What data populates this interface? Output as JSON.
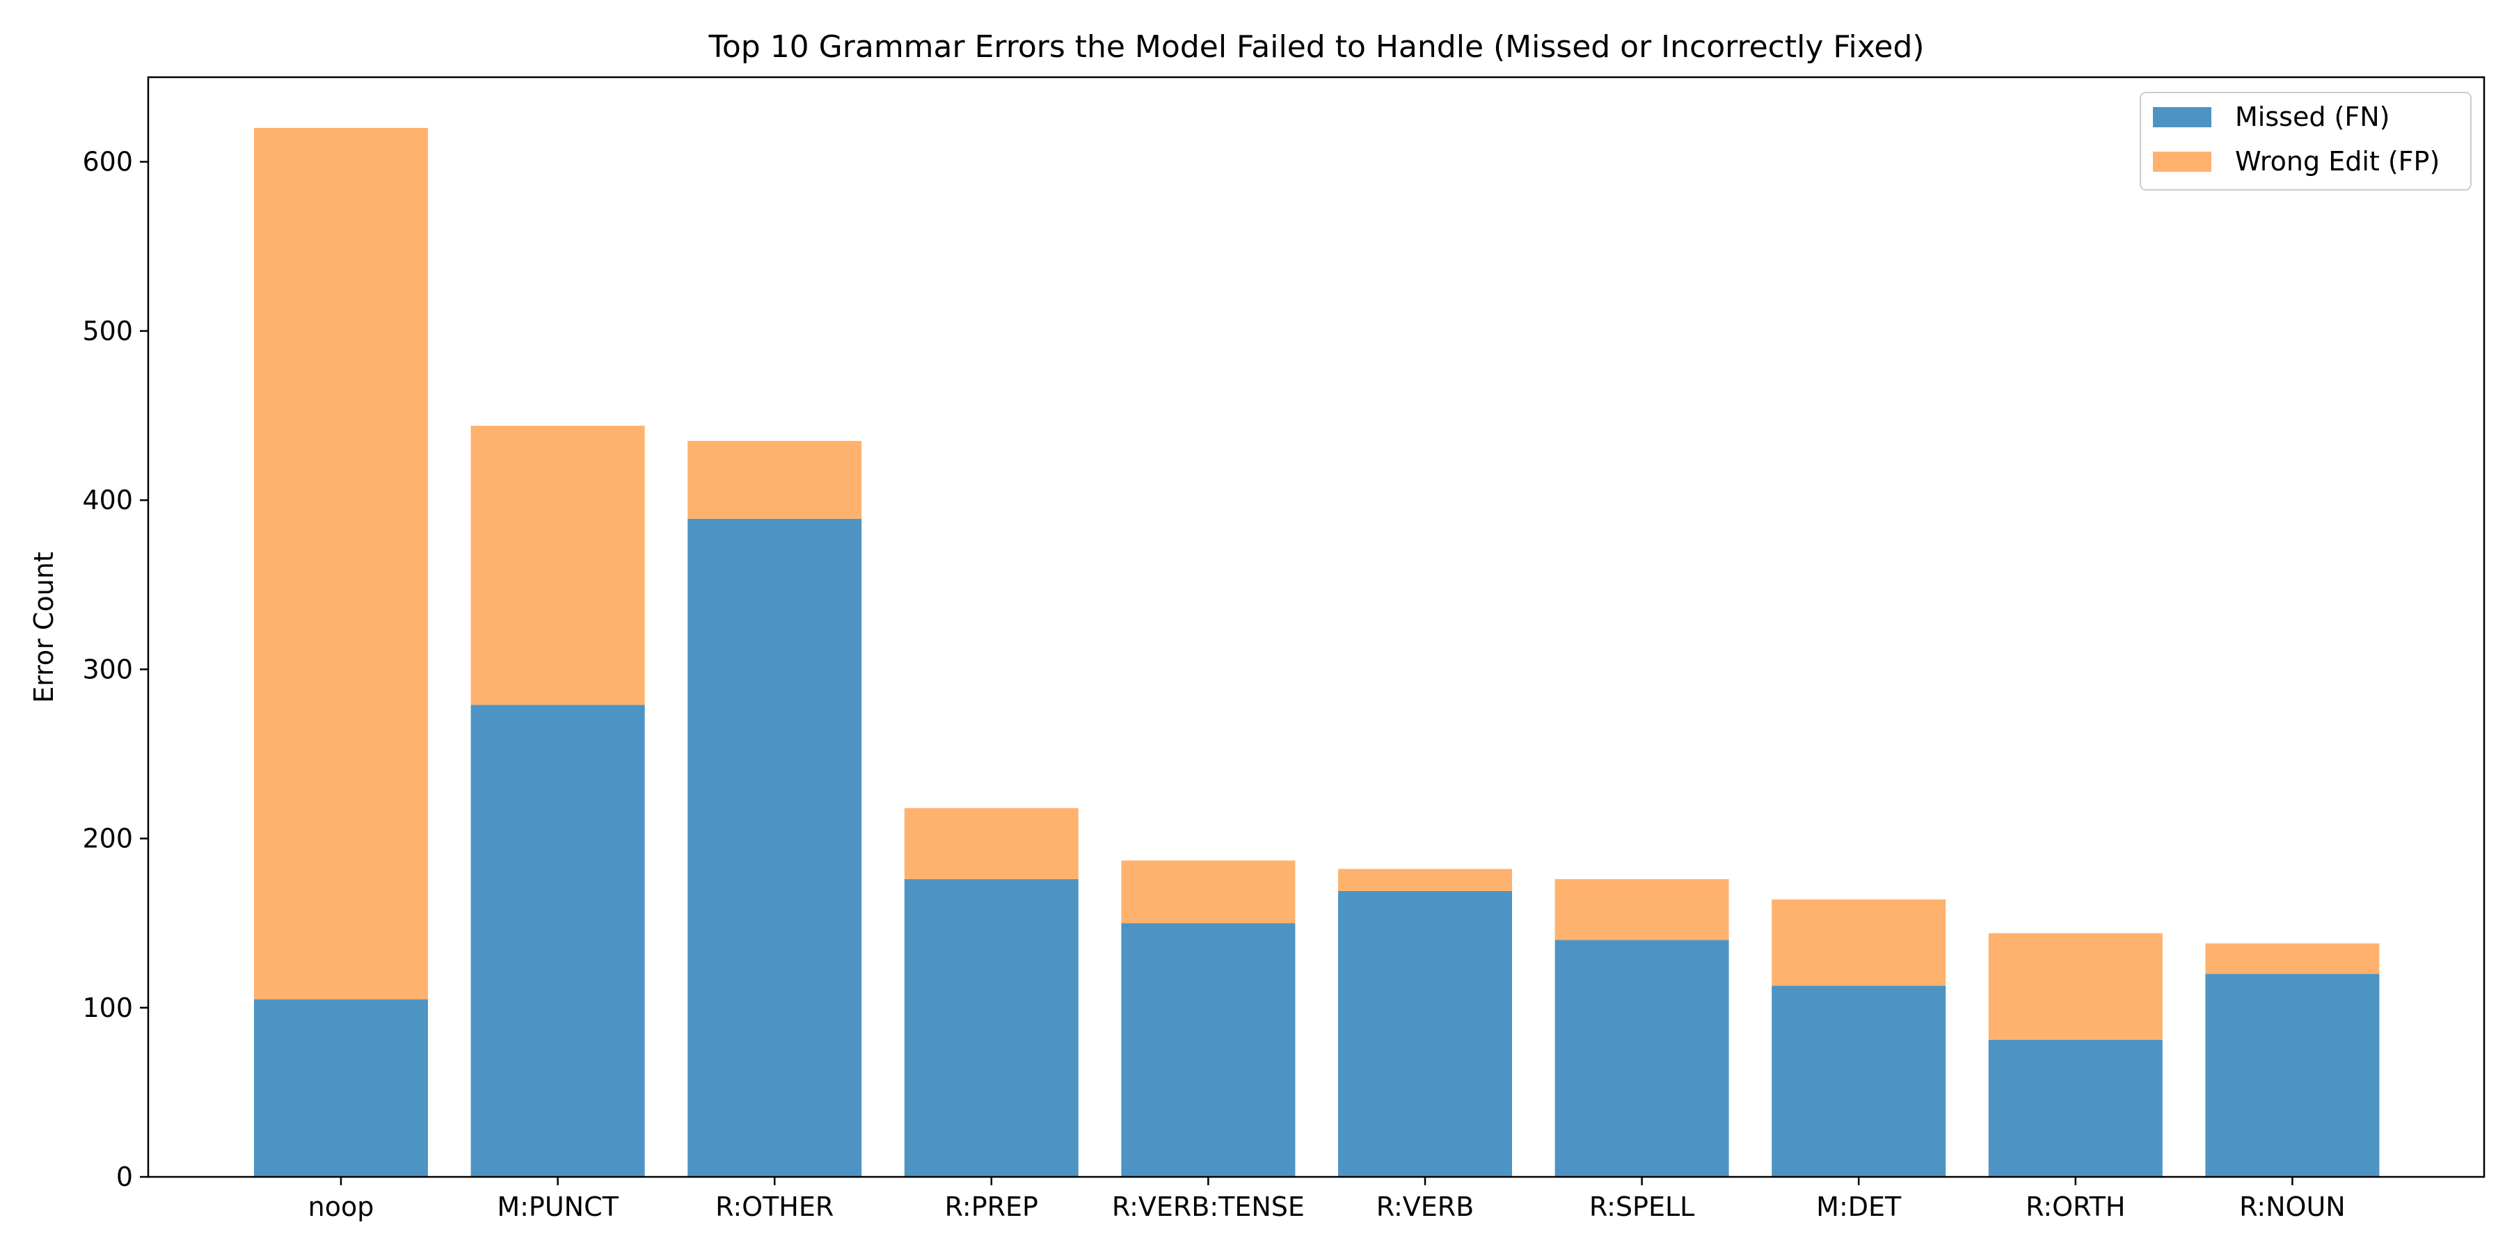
{
  "chart_data": {
    "type": "bar",
    "stacked": true,
    "title": "Top 10 Grammar Errors the Model Failed to Handle (Missed or Incorrectly Fixed)",
    "xlabel": "",
    "ylabel": "Error Count",
    "ylim": [
      0,
      650
    ],
    "yticks": [
      0,
      100,
      200,
      300,
      400,
      500,
      600
    ],
    "grid": false,
    "legend_position": "top-right",
    "categories": [
      "noop",
      "M:PUNCT",
      "R:OTHER",
      "R:PREP",
      "R:VERB:TENSE",
      "R:VERB",
      "R:SPELL",
      "M:DET",
      "R:ORTH",
      "R:NOUN"
    ],
    "series": [
      {
        "name": "Missed (FN)",
        "color": "#4d94c4",
        "values": [
          105,
          279,
          389,
          176,
          150,
          169,
          140,
          113,
          81,
          120
        ]
      },
      {
        "name": "Wrong Edit (FP)",
        "color": "#ffb26e",
        "values": [
          515,
          165,
          46,
          42,
          37,
          13,
          36,
          51,
          63,
          18
        ]
      }
    ]
  }
}
